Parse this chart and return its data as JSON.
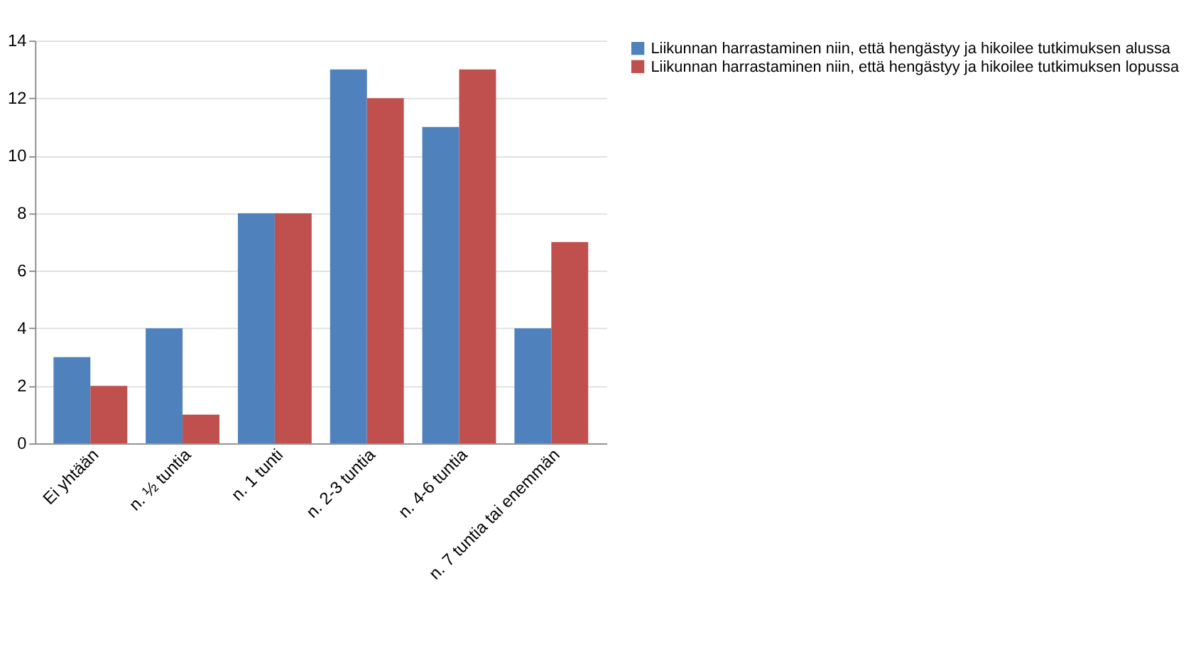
{
  "chart_data": {
    "type": "bar",
    "categories": [
      "Ei yhtään",
      "n. ½ tuntia",
      "n. 1 tunti",
      "n. 2-3 tuntia",
      "n. 4-6 tuntia",
      "n. 7 tuntia tai enemmän"
    ],
    "series": [
      {
        "name": "Liikunnan harrastaminen niin, että hengästyy ja hikoilee tutkimuksen alussa",
        "color": "#4f81bd",
        "values": [
          3,
          4,
          8,
          13,
          11,
          4
        ]
      },
      {
        "name": "Liikunnan harrastaminen niin, että hengästyy ja hikoilee tutkimuksen lopussa",
        "color": "#c0504d",
        "values": [
          2,
          1,
          8,
          12,
          13,
          7
        ]
      }
    ],
    "ylim": [
      0,
      14
    ],
    "yticks": [
      0,
      2,
      4,
      6,
      8,
      10,
      12,
      14
    ],
    "grid": "y",
    "legend": "right"
  }
}
